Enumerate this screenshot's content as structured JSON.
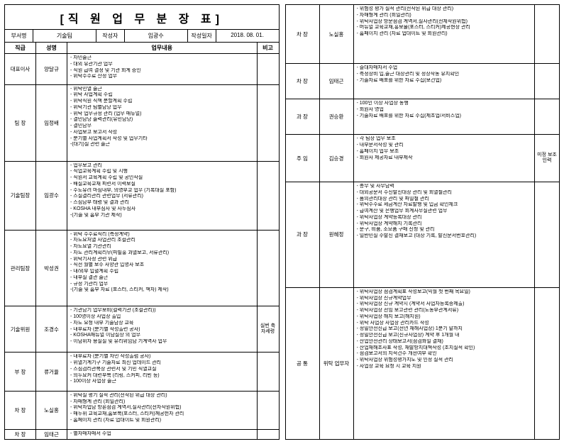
{
  "title": "[직 원 업 무 분 장 표]",
  "meta": {
    "dept_label": "부서명",
    "dept": "기술팀",
    "author_label": "작성자",
    "author": "임광수",
    "date_label": "작성일자",
    "date": "2018. 08. 01."
  },
  "headers": {
    "role": "직급",
    "name": "성명",
    "tasks": "업무내용",
    "note": "비고"
  },
  "page1_rows": [
    {
      "role": "대표이사",
      "name": "양달규",
      "tasks": [
        "- 자민술근",
        "- 대외 유관기관 업무",
        "- 직원 급여 결정 및 기관 회계 승인",
        "- 위탁수수료 산정 업무"
      ],
      "note": ""
    },
    {
      "role": "팀 장",
      "name": "임정배",
      "tasks": [
        "- 위탁민열 술근",
        "- 위탁 사업계획 수립",
        "- 위탁직원 직책 분할계획 수립",
        "- 위탁기관 팀별담당 업무",
        "- 위탁 업무규정 관리 (업무 매뉴얼)",
        "- 결민담당 술력관리(유민담당)",
        "- 결민담무",
        "- 사업보고 보고서 작성",
        "- 분기별 사업계획서 작성 및 업무기타",
        "-(대기)실 관련 술근"
      ],
      "note": ""
    },
    {
      "role": "기술팀장",
      "name": "임광수",
      "tasks": [
        "- 업무보고 관리",
        "- 직업교육계획 수립 및 시행",
        "- 직원서 교육계획 수립 및 공인작실",
        "- 배실교육교재 피련서 이력보실",
        "- 수도유려 마심내부, 의영부교 업무 (기록대실 포함)",
        "- 스실결리관리 관련업무 (서류관리)",
        "- 스심담부 태령 및 결과 관리",
        "- KOSHA 내부심사 및 사두심사",
        "-(기술 및 홈부 기관 제작)"
      ],
      "note": ""
    },
    {
      "role": "관리팀장",
      "name": "박성권",
      "tasks": [
        "- 위탁 수수료직리 (측정계약)",
        "- 자도요처열 사업관리 조컬관리",
        "- 자도요열 기관관리",
        "- 자도 관리계획리무(피빌홍 과열보고, 서류관리)",
        "- 위탁기사정 관련 위급",
        "- 직전 월별 보수 사양관 입명사 보조",
        "- 내/외부 입혈계획 수립",
        "- 내부실 결관 술근",
        "- 규정 기관리 업무",
        "-(기술 및 홈부 자료 (포스터, 스티커, 책자) 제작)"
      ],
      "note": ""
    },
    {
      "role": "기술위원",
      "name": "조경수",
      "tasks": [
        "- 기관담기 업무보비(컬력기관 (조컬관리))",
        "- 100명이상 사업장 출입",
        "- 자도 요청 내부 기술담상 교육",
        "- 내부료자 (분기별 작성출련 공사)",
        "- KOSHA매뉴얼 이담실상 의 업무",
        "- 이담위자 용실실 및 유리위임담 기계역사 업무"
      ],
      "note": "실번 축자세령"
    },
    {
      "role": "부 장",
      "name": "류거율",
      "tasks": [
        "- 내부료자 (분기별 자민 작성출럼 공사)",
        "- 위열기계기구 기술자료 최신 업데이드 관리",
        "- 스심검리관복상 관련서 및 기민 직열교실",
        "- 의두요커 대련부복 (리링, 스커피, 리빈 등)",
        "- 100이상 사업장 술근"
      ],
      "note": ""
    },
    {
      "role": "차 장",
      "name": "노실홍",
      "tasks": [
        "- 위탁실 평기 실적 관리(전작된 위급 대상 관리)",
        "- 자매형계 관리 (회일관리)",
        "- 위탁자업담 방론점검 계역서,실사관리(전자작원위헙)",
        "- 매두위 교육교재,홈보복(포스터, 스티커)께공헌자 관리",
        "- 홈페이지 관리 (자료 업대이트 및 회원관리)"
      ],
      "note": ""
    },
    {
      "role": "차 장",
      "name": "임태근",
      "tasks": [
        "- 별자매자매서 수업"
      ],
      "note": ""
    }
  ],
  "page2_rows": [
    {
      "role": "차 장",
      "name": "노실홍",
      "tasks": [
        "- 위험성 평가 실적 관리(전작된 위급 대상 관리)",
        "- 자매형계 관리 (회일관리)",
        "- 위탁사업장 방문점검 계역서,실사관리(전체작원위헙)",
        "- 머뉴얼 교육교재,홍보물(포스터, 스티커)제공현장 관리",
        "- 홈페이지 관리 (자료 업대이트 및 회원관리)"
      ],
      "note": ""
    },
    {
      "role": "차 장",
      "name": "임태근",
      "tasks": [
        "- 즐대자매자서 수업",
        "- 측정장비 입,술근 대장관리 및 정상작동 유지확인",
        "- 기술자료 배포를 위한 자료 수집(보건업)"
      ],
      "note": ""
    },
    {
      "role": "과 장",
      "name": "권승환",
      "tasks": [
        "- 100인 이상 사업장 동행",
        "- 회원사 영업",
        "- 기술자료 배포를 위한 자료 수집(제조업/서비스업)"
      ],
      "note": ""
    },
    {
      "role": "주 임",
      "name": "김승경",
      "tasks": [
        "- 각 팀장 업무 보조",
        "- 내부문서작성 및 관리",
        "- 홈페이지 업무 보조",
        "- 회원사 제공자료 내부제작"
      ],
      "note": "미정 보조인력"
    },
    {
      "role": "과 장",
      "name": "원혜정",
      "tasks": [
        "- 총무 및 사무담력",
        "- 대외공문서 수신발신대장 관리 및 회열철관리",
        "- 품의관리대장 관리 및 파일철 관리",
        "- 위탁수수료 세금계산 자료발행 및 입금 확인체크",
        "- 급여계산 및 은행업무 회계사무실관련 업무",
        "- 위탁사업장 계약등록대장 관리",
        "- 위탁사업장 계약해지 기록관리",
        "- 문구, 비품, 소모품 구매 신청 및 관리",
        "- 일반민실 수발신 결재보고 (대장 기록, 발신문서번호관리)"
      ],
      "note": ""
    },
    {
      "role": "공 통",
      "name": "위탁 업무자",
      "tasks": [
        "- 위탁사업장 점검계획표 작성보고(익월 첫 번째 목요일)",
        "- 위탁사업장 신규계약업무",
        "- 위탁사업장 신규 계약시 (계약서 사업자등록증제출)",
        "- 위탁사업장 선임 보고관련 관리(노동부관계서류)",
        "- 위탁사업장 해지 보고(해지원)",
        "- 위탁 사업장 사업장 관리카드 작성",
        "- 정밀안전진급 보고(전년 재해사업장) 1분기 말까지",
        "- 정밀안전진급 보고(신규사업장) 계약 후 1개월 내",
        "- 산업안전관리 상태보고서(점검화일 결재)",
        "- 산업재해조사표 작성, 재발방지대책작성 (조치실적 확인)",
        "- 점검보고서의 지적건수 개선여부 확인",
        "- 위탁사업장 위험성평가지도 및 인정 실적 관리",
        "- 사업장 교육 요청 시 교육 지원"
      ],
      "note": ""
    }
  ]
}
